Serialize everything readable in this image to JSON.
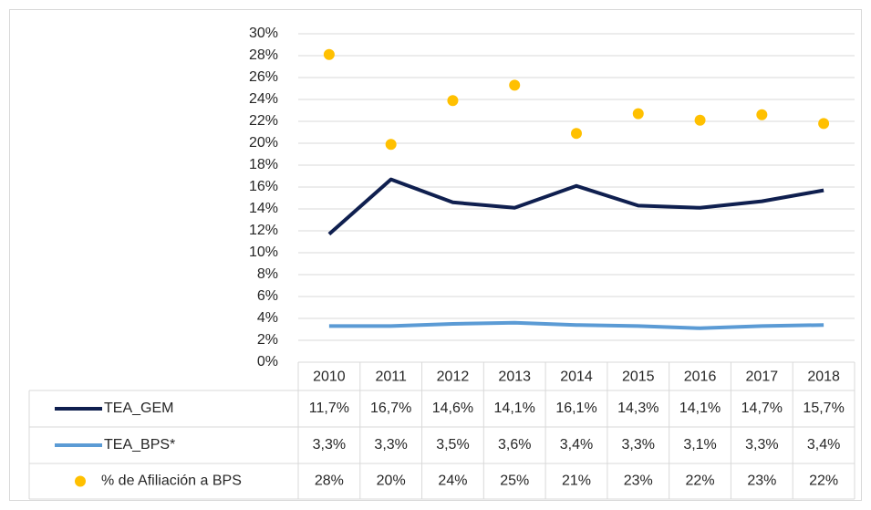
{
  "chart_data": {
    "type": "line",
    "categories": [
      "2010",
      "2011",
      "2012",
      "2013",
      "2014",
      "2015",
      "2016",
      "2017",
      "2018"
    ],
    "series": [
      {
        "name": "TEA_GEM",
        "color": "#0f1f4f",
        "style": "line",
        "values": [
          11.7,
          16.7,
          14.6,
          14.1,
          16.1,
          14.3,
          14.1,
          14.7,
          15.7
        ],
        "value_labels": [
          "11,7%",
          "16,7%",
          "14,6%",
          "14,1%",
          "16,1%",
          "14,3%",
          "14,1%",
          "14,7%",
          "15,7%"
        ]
      },
      {
        "name": "TEA_BPS*",
        "color": "#5b9bd5",
        "style": "line",
        "values": [
          3.3,
          3.3,
          3.5,
          3.6,
          3.4,
          3.3,
          3.1,
          3.3,
          3.4
        ],
        "value_labels": [
          "3,3%",
          "3,3%",
          "3,5%",
          "3,6%",
          "3,4%",
          "3,3%",
          "3,1%",
          "3,3%",
          "3,4%"
        ]
      },
      {
        "name": "% de Afiliación a BPS",
        "color": "#ffc000",
        "style": "marker",
        "values": [
          28.1,
          19.9,
          23.9,
          25.3,
          20.9,
          22.7,
          22.1,
          22.6,
          21.8
        ],
        "value_labels": [
          "28%",
          "20%",
          "24%",
          "25%",
          "21%",
          "23%",
          "22%",
          "23%",
          "22%"
        ]
      }
    ],
    "ylim": [
      0,
      30
    ],
    "yticks": [
      {
        "value": 0,
        "label": "0%"
      },
      {
        "value": 2,
        "label": "2%"
      },
      {
        "value": 4,
        "label": "4%"
      },
      {
        "value": 6,
        "label": "6%"
      },
      {
        "value": 8,
        "label": "8%"
      },
      {
        "value": 10,
        "label": "10%"
      },
      {
        "value": 12,
        "label": "12%"
      },
      {
        "value": 14,
        "label": "14%"
      },
      {
        "value": 16,
        "label": "16%"
      },
      {
        "value": 18,
        "label": "18%"
      },
      {
        "value": 20,
        "label": "20%"
      },
      {
        "value": 22,
        "label": "22%"
      },
      {
        "value": 24,
        "label": "24%"
      },
      {
        "value": 26,
        "label": "26%"
      },
      {
        "value": 28,
        "label": "28%"
      },
      {
        "value": 30,
        "label": "30%"
      }
    ],
    "grid": true
  }
}
